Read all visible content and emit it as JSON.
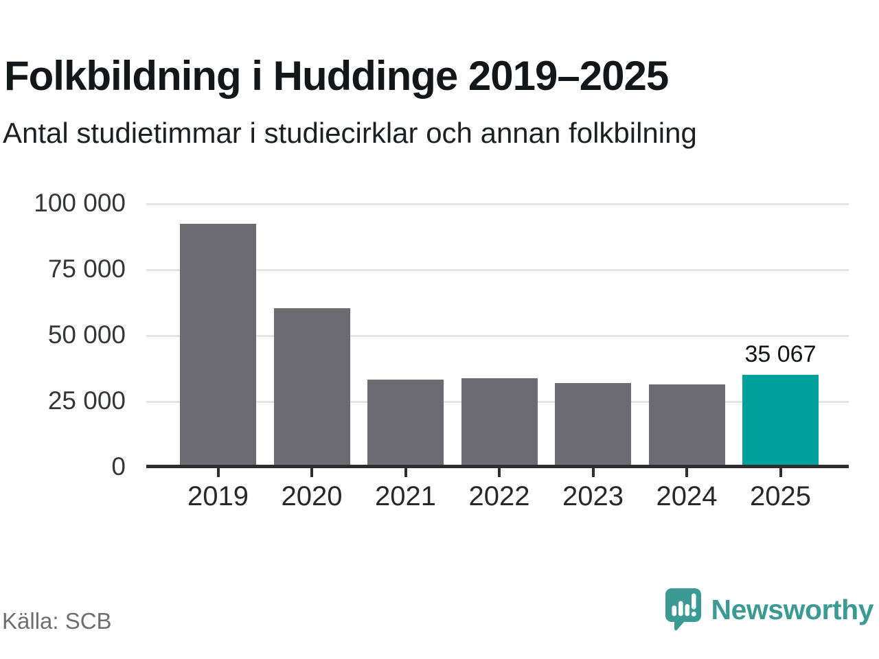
{
  "header": {
    "title": "Folkbildning i Huddinge 2019–2025",
    "subtitle": "Antal studietimmar i studiecirklar och annan folkbilning"
  },
  "chart_data": {
    "type": "bar",
    "title": "Folkbildning i Huddinge 2019–2025",
    "subtitle": "Antal studietimmar i studiecirklar och annan folkbilning",
    "categories": [
      "2019",
      "2020",
      "2021",
      "2022",
      "2023",
      "2024",
      "2025"
    ],
    "values": [
      92500,
      60500,
      33400,
      33900,
      32000,
      31600,
      35067
    ],
    "highlight": {
      "index": 6,
      "category": "2025",
      "value": 35067,
      "label": "35 067"
    },
    "xlabel": "",
    "ylabel": "",
    "ylim": [
      0,
      100000
    ],
    "yticks": [
      {
        "value": 100000,
        "label": "100 000"
      },
      {
        "value": 75000,
        "label": "75 000"
      },
      {
        "value": 50000,
        "label": "50 000"
      },
      {
        "value": 25000,
        "label": "25 000"
      },
      {
        "value": 0,
        "label": "0"
      }
    ],
    "grid": true,
    "legend": false
  },
  "colors": {
    "bar": "#6c6b72",
    "highlight_bar": "#00a09a",
    "grid": "#e4e4e4",
    "axis": "#2e2d31",
    "brand_teal": "#3b9b94"
  },
  "footer": {
    "source": "Källa: SCB",
    "brand": "Newsworthy",
    "logo_icon": "bar-chart-speech-bubble"
  }
}
